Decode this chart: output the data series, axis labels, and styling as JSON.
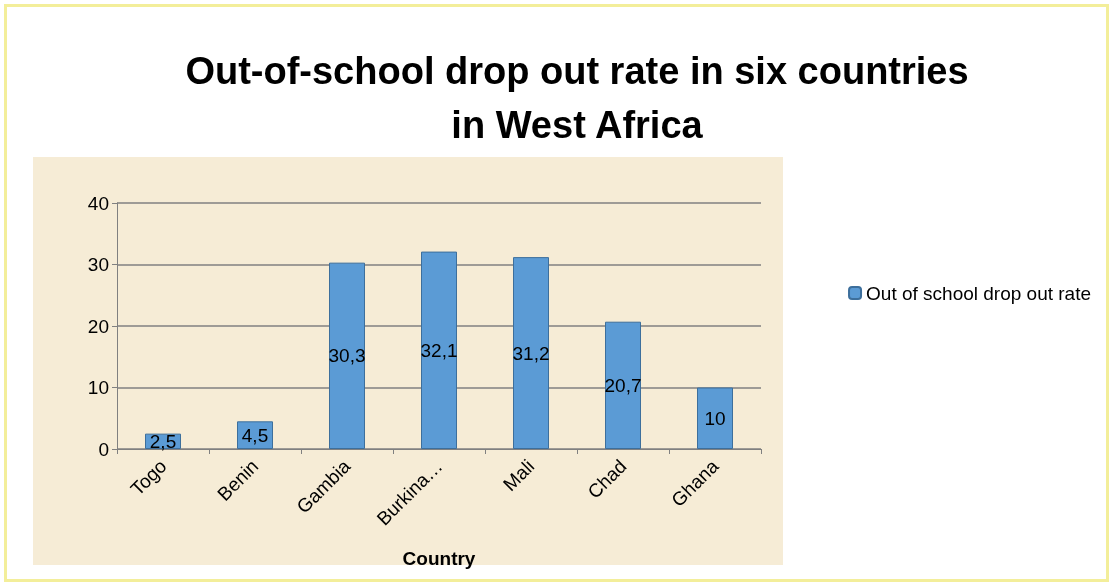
{
  "chart_data": {
    "type": "bar",
    "title": "Out-of-school drop out rate in six countries\nin West Africa",
    "xlabel": "Country",
    "categories": [
      "Togo",
      "Benin",
      "Gambia",
      "Burkina…",
      "Mali",
      "Chad",
      "Ghana"
    ],
    "series": [
      {
        "name": "Out of school drop out rate",
        "color": "#5b9bd5",
        "values": [
          2.5,
          4.5,
          30.3,
          32.1,
          31.2,
          20.7,
          10
        ],
        "value_labels": [
          "2,5",
          "4,5",
          "30,3",
          "32,1",
          "31,2",
          "20,7",
          "10"
        ]
      }
    ],
    "ylim": [
      0,
      40
    ],
    "yticks": [
      0,
      10,
      20,
      30,
      40
    ],
    "grid": "y",
    "legend": "right"
  }
}
